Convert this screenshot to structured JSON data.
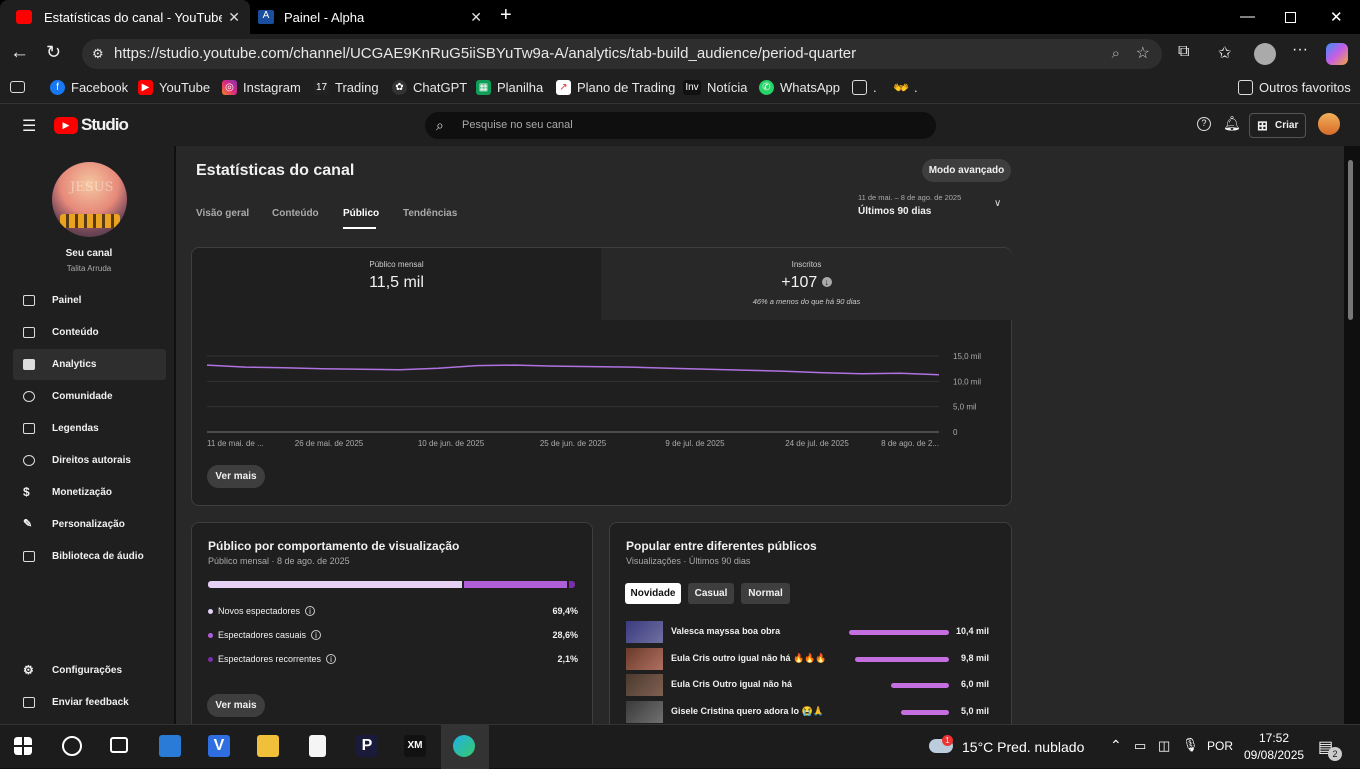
{
  "browser": {
    "tabs": [
      {
        "title": "Estatísticas do canal - YouTube Studio"
      },
      {
        "title": "Painel - Alpha"
      }
    ],
    "url": "https://studio.youtube.com/channel/UCGAE9KnRuG5iiSBYuTw9a-A/analytics/tab-build_audience/period-quarter",
    "bookmarks": [
      "Facebook",
      "YouTube",
      "Instagram",
      "Trading",
      "ChatGPT",
      "Planilha",
      "Plano de Trading",
      "Notícia",
      "WhatsApp",
      ".",
      "."
    ],
    "other_favorites": "Outros favoritos"
  },
  "studio": {
    "logo": "Studio",
    "search_placeholder": "Pesquise no seu canal",
    "create_label": "Criar"
  },
  "sidebar": {
    "channel_title": "Seu canal",
    "channel_name": "Talita Arruda",
    "avatar_text": "JESUS",
    "items": [
      {
        "label": "Painel",
        "icon": "dashboard-icon"
      },
      {
        "label": "Conteúdo",
        "icon": "content-icon"
      },
      {
        "label": "Analytics",
        "icon": "analytics-icon",
        "active": true
      },
      {
        "label": "Comunidade",
        "icon": "community-icon"
      },
      {
        "label": "Legendas",
        "icon": "subtitles-icon"
      },
      {
        "label": "Direitos autorais",
        "icon": "copyright-icon"
      },
      {
        "label": "Monetização",
        "icon": "money-icon"
      },
      {
        "label": "Personalização",
        "icon": "wand-icon"
      },
      {
        "label": "Biblioteca de áudio",
        "icon": "audio-library-icon"
      }
    ],
    "bottom": [
      {
        "label": "Configurações",
        "icon": "gear-icon"
      },
      {
        "label": "Enviar feedback",
        "icon": "feedback-icon"
      }
    ]
  },
  "page": {
    "title": "Estatísticas do canal",
    "advanced_mode": "Modo avançado",
    "tabs": [
      "Visão geral",
      "Conteúdo",
      "Público",
      "Tendências"
    ],
    "active_tab": "Público",
    "period_range": "11 de mai. – 8 de ago. de 2025",
    "period_label": "Últimos 90 dias"
  },
  "summary": {
    "monthly_audience_label": "Público mensal",
    "monthly_audience_value": "11,5 mil",
    "subscribers_label": "Inscritos",
    "subscribers_value": "+107",
    "subscribers_note": "46% a menos do que há 90 dias",
    "see_more": "Ver mais"
  },
  "chart_data": {
    "type": "line",
    "x_ticks": [
      "11 de mai. de ...",
      "26 de mai. de 2025",
      "10 de jun. de 2025",
      "25 de jun. de 2025",
      "9 de jul. de 2025",
      "24 de jul. de 2025",
      "8 de ago. de 2..."
    ],
    "y_ticks": [
      "15,0 mil",
      "10,0 mil",
      "5,0 mil",
      "0"
    ],
    "ylim": [
      0,
      15000
    ],
    "series": [
      {
        "values": [
          13200,
          12800,
          12700,
          12500,
          12400,
          12300,
          12600,
          13100,
          13200,
          13000,
          12900,
          12800,
          12600,
          12400,
          12200,
          12000,
          11700,
          11500,
          11600,
          11300
        ]
      }
    ],
    "color": "#b072e0"
  },
  "behavior": {
    "title": "Público por comportamento de visualização",
    "subtitle": "Público mensal · 8 de ago. de 2025",
    "segments": [
      {
        "label": "Novos espectadores",
        "pct": "69,4%",
        "value": 69.4,
        "color": "#e6d0f3"
      },
      {
        "label": "Espectadores casuais",
        "pct": "28,6%",
        "value": 28.6,
        "color": "#b05fd8"
      },
      {
        "label": "Espectadores recorrentes",
        "pct": "2,1%",
        "value": 2.1,
        "color": "#7a2fa8"
      }
    ],
    "see_more": "Ver mais"
  },
  "popular": {
    "title": "Popular entre diferentes públicos",
    "subtitle": "Visualizações · Últimos 90 dias",
    "chips": [
      "Novidade",
      "Casual",
      "Normal"
    ],
    "active_chip": "Novidade",
    "rows": [
      {
        "label": "Valesca mayssa boa obra",
        "value": "10,4 mil",
        "num": 10.4
      },
      {
        "label": "Eula Cris outro igual não há 🔥🔥🔥",
        "value": "9,8 mil",
        "num": 9.8
      },
      {
        "label": "Eula Cris Outro igual não há",
        "value": "6,0 mil",
        "num": 6.0
      },
      {
        "label": "Gisele Cristina quero adora lo 😭🙏",
        "value": "5,0 mil",
        "num": 5.0
      }
    ]
  },
  "taskbar": {
    "weather": "15°C  Pred. nublado",
    "weather_badge": "1",
    "lang": "POR",
    "time": "17:52",
    "date": "09/08/2025",
    "notif_count": "2"
  }
}
